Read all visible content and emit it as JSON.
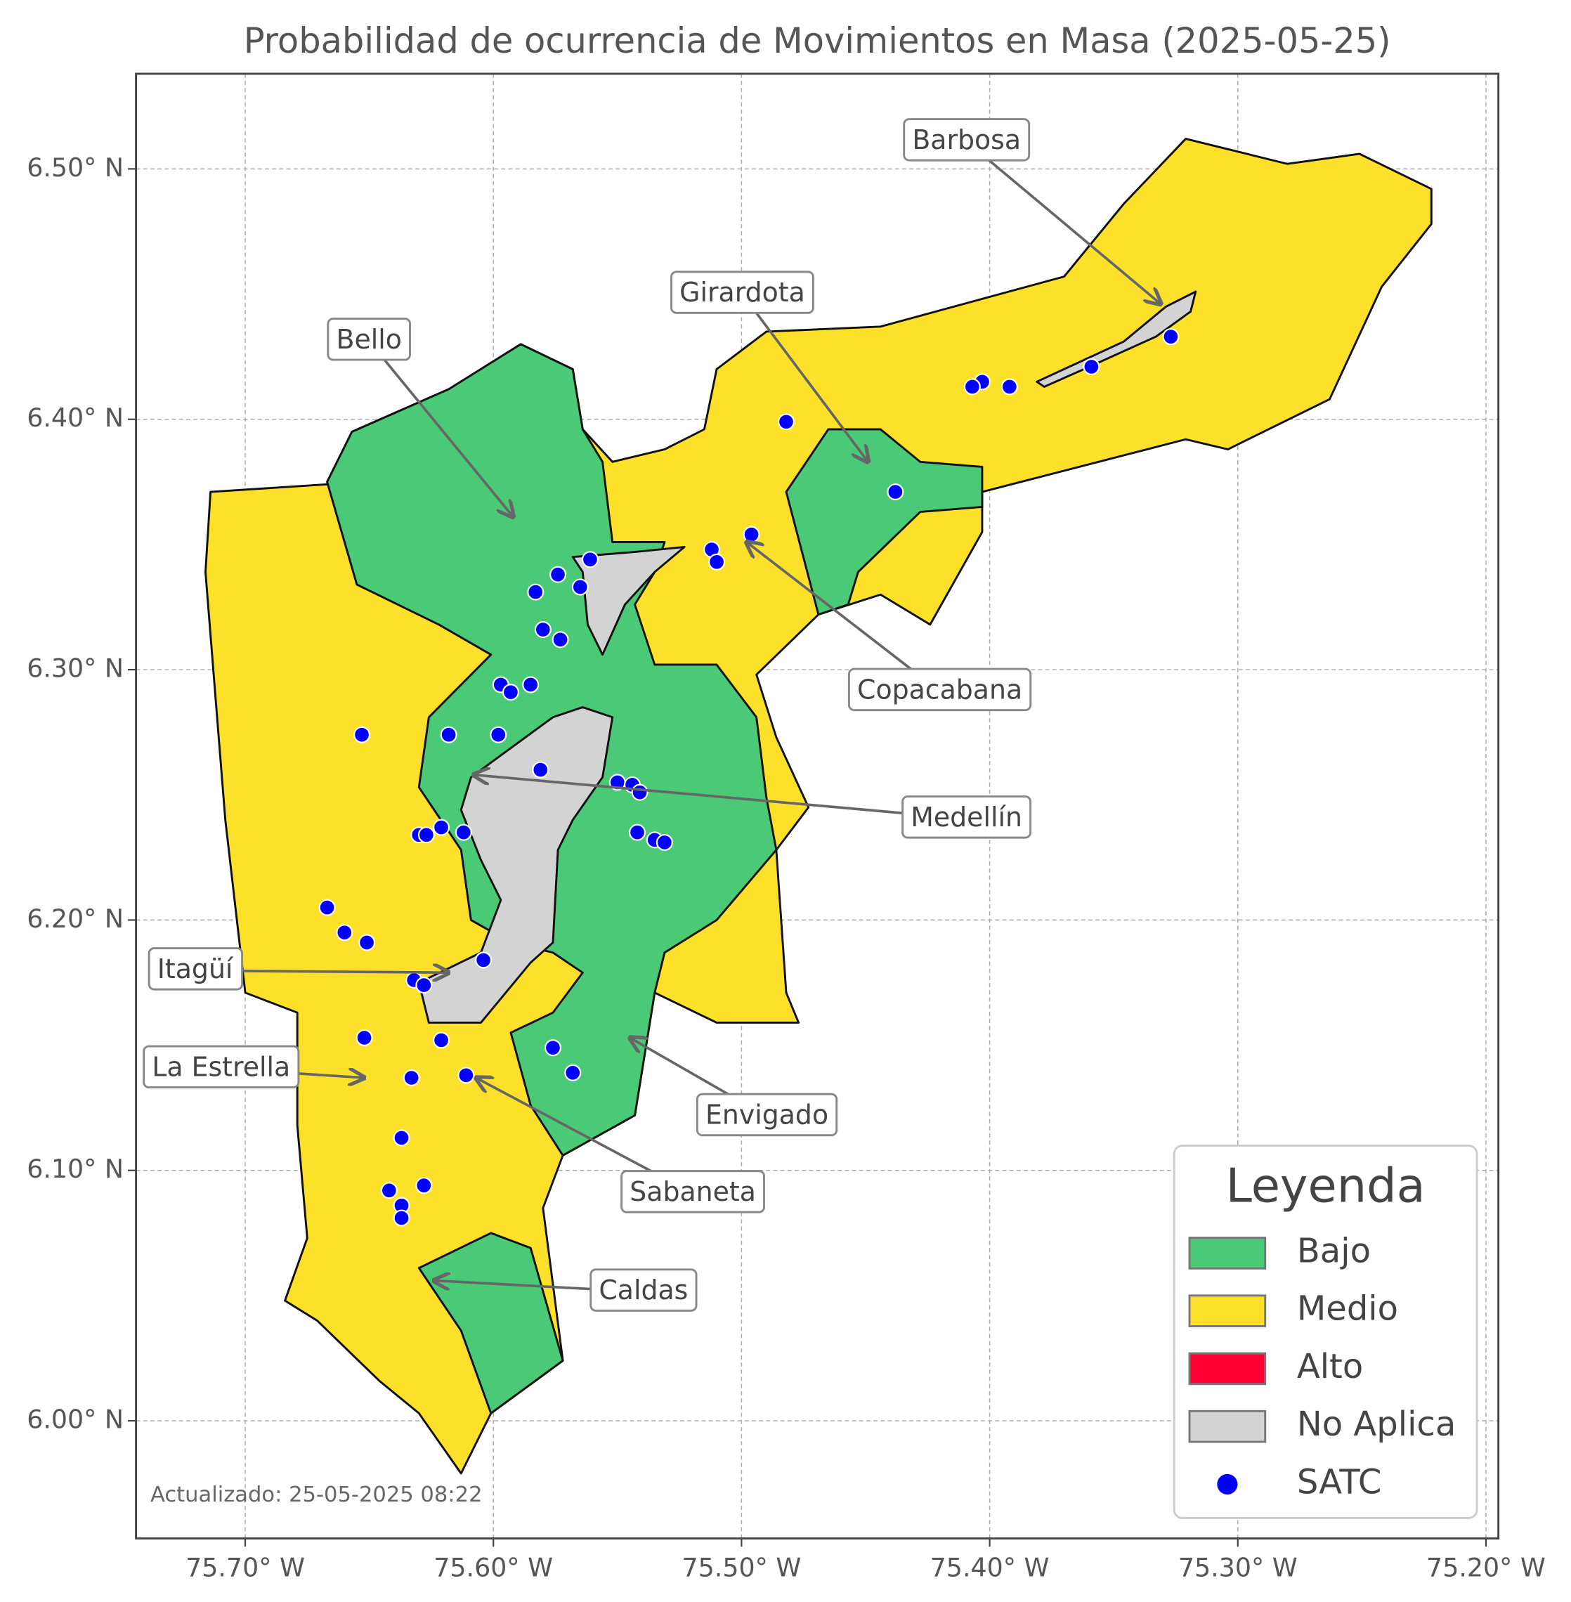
{
  "chart_data": {
    "type": "map",
    "title": "Probabilidad de ocurrencia de Movimientos en Masa (2025-05-25)",
    "xlim": [
      -75.744,
      -75.195
    ],
    "ylim": [
      5.953,
      6.538
    ],
    "xticks": [
      {
        "value": -75.7,
        "label": "75.70° W"
      },
      {
        "value": -75.6,
        "label": "75.60° W"
      },
      {
        "value": -75.5,
        "label": "75.50° W"
      },
      {
        "value": -75.4,
        "label": "75.40° W"
      },
      {
        "value": -75.3,
        "label": "75.30° W"
      },
      {
        "value": -75.2,
        "label": "75.20° W"
      }
    ],
    "yticks": [
      {
        "value": 6.0,
        "label": "6.00° N"
      },
      {
        "value": 6.1,
        "label": "6.10° N"
      },
      {
        "value": 6.2,
        "label": "6.20° N"
      },
      {
        "value": 6.3,
        "label": "6.30° N"
      },
      {
        "value": 6.4,
        "label": "6.40° N"
      },
      {
        "value": 6.5,
        "label": "6.50° N"
      }
    ],
    "grid": true,
    "legend": {
      "title": "Leyenda",
      "items": [
        {
          "label": "Bajo",
          "color": "#4ac977"
        },
        {
          "label": "Medio",
          "color": "#fde02a"
        },
        {
          "label": "Alto",
          "color": "#ff0033"
        },
        {
          "label": "No Aplica",
          "color": "#d3d3d3"
        }
      ]
    },
    "regions": [
      {
        "category": "Medio",
        "coords": [
          [
            -75.714,
            6.371
          ],
          [
            -75.667,
            6.374
          ],
          [
            -75.657,
            6.395
          ],
          [
            -75.618,
            6.412
          ],
          [
            -75.589,
            6.43
          ],
          [
            -75.568,
            6.42
          ],
          [
            -75.564,
            6.396
          ],
          [
            -75.552,
            6.383
          ],
          [
            -75.531,
            6.388
          ],
          [
            -75.515,
            6.396
          ],
          [
            -75.51,
            6.42
          ],
          [
            -75.49,
            6.435
          ],
          [
            -75.444,
            6.437
          ],
          [
            -75.37,
            6.457
          ],
          [
            -75.346,
            6.486
          ],
          [
            -75.321,
            6.512
          ],
          [
            -75.28,
            6.502
          ],
          [
            -75.251,
            6.506
          ],
          [
            -75.222,
            6.492
          ],
          [
            -75.222,
            6.478
          ],
          [
            -75.242,
            6.453
          ],
          [
            -75.263,
            6.408
          ],
          [
            -75.304,
            6.388
          ],
          [
            -75.321,
            6.392
          ],
          [
            -75.403,
            6.371
          ],
          [
            -75.403,
            6.355
          ],
          [
            -75.424,
            6.318
          ],
          [
            -75.444,
            6.33
          ],
          [
            -75.469,
            6.322
          ],
          [
            -75.494,
            6.298
          ],
          [
            -75.486,
            6.273
          ],
          [
            -75.473,
            6.245
          ],
          [
            -75.486,
            6.228
          ],
          [
            -75.482,
            6.171
          ],
          [
            -75.477,
            6.159
          ],
          [
            -75.51,
            6.159
          ],
          [
            -75.535,
            6.171
          ],
          [
            -75.543,
            6.122
          ],
          [
            -75.572,
            6.106
          ],
          [
            -75.58,
            6.085
          ],
          [
            -75.572,
            6.024
          ],
          [
            -75.601,
            6.003
          ],
          [
            -75.613,
            5.979
          ],
          [
            -75.63,
            6.003
          ],
          [
            -75.646,
            6.016
          ],
          [
            -75.671,
            6.04
          ],
          [
            -75.684,
            6.048
          ],
          [
            -75.675,
            6.073
          ],
          [
            -75.679,
            6.118
          ],
          [
            -75.679,
            6.163
          ],
          [
            -75.7,
            6.171
          ],
          [
            -75.708,
            6.24
          ],
          [
            -75.716,
            6.339
          ]
        ]
      },
      {
        "category": "Bajo",
        "coords": [
          [
            -75.667,
            6.375
          ],
          [
            -75.657,
            6.395
          ],
          [
            -75.618,
            6.412
          ],
          [
            -75.589,
            6.43
          ],
          [
            -75.568,
            6.42
          ],
          [
            -75.564,
            6.396
          ],
          [
            -75.556,
            6.383
          ],
          [
            -75.552,
            6.351
          ],
          [
            -75.531,
            6.351
          ],
          [
            -75.535,
            6.339
          ],
          [
            -75.543,
            6.326
          ],
          [
            -75.535,
            6.302
          ],
          [
            -75.51,
            6.302
          ],
          [
            -75.494,
            6.281
          ],
          [
            -75.49,
            6.249
          ],
          [
            -75.486,
            6.228
          ],
          [
            -75.51,
            6.2
          ],
          [
            -75.531,
            6.187
          ],
          [
            -75.535,
            6.171
          ],
          [
            -75.543,
            6.122
          ],
          [
            -75.572,
            6.106
          ],
          [
            -75.585,
            6.126
          ],
          [
            -75.593,
            6.155
          ],
          [
            -75.576,
            6.163
          ],
          [
            -75.564,
            6.179
          ],
          [
            -75.576,
            6.187
          ],
          [
            -75.593,
            6.191
          ],
          [
            -75.609,
            6.2
          ],
          [
            -75.613,
            6.228
          ],
          [
            -75.63,
            6.253
          ],
          [
            -75.626,
            6.281
          ],
          [
            -75.601,
            6.306
          ],
          [
            -75.622,
            6.318
          ],
          [
            -75.655,
            6.334
          ]
        ]
      },
      {
        "category": "Bajo",
        "coords": [
          [
            -75.469,
            6.322
          ],
          [
            -75.482,
            6.371
          ],
          [
            -75.465,
            6.396
          ],
          [
            -75.444,
            6.396
          ],
          [
            -75.428,
            6.383
          ],
          [
            -75.403,
            6.381
          ],
          [
            -75.403,
            6.365
          ],
          [
            -75.428,
            6.363
          ],
          [
            -75.453,
            6.339
          ],
          [
            -75.457,
            6.326
          ]
        ]
      },
      {
        "category": "Bajo",
        "coords": [
          [
            -75.63,
            6.061
          ],
          [
            -75.601,
            6.075
          ],
          [
            -75.585,
            6.069
          ],
          [
            -75.572,
            6.024
          ],
          [
            -75.601,
            6.003
          ],
          [
            -75.613,
            6.036
          ]
        ]
      },
      {
        "category": "No Aplica",
        "coords": [
          [
            -75.609,
            6.257
          ],
          [
            -75.576,
            6.281
          ],
          [
            -75.564,
            6.285
          ],
          [
            -75.552,
            6.281
          ],
          [
            -75.556,
            6.257
          ],
          [
            -75.568,
            6.24
          ],
          [
            -75.574,
            6.228
          ],
          [
            -75.576,
            6.191
          ],
          [
            -75.585,
            6.183
          ],
          [
            -75.605,
            6.159
          ],
          [
            -75.626,
            6.159
          ],
          [
            -75.63,
            6.175
          ],
          [
            -75.605,
            6.187
          ],
          [
            -75.597,
            6.208
          ],
          [
            -75.605,
            6.224
          ],
          [
            -75.613,
            6.244
          ]
        ]
      },
      {
        "category": "No Aplica",
        "coords": [
          [
            -75.568,
            6.345
          ],
          [
            -75.543,
            6.347
          ],
          [
            -75.523,
            6.349
          ],
          [
            -75.535,
            6.339
          ],
          [
            -75.547,
            6.326
          ],
          [
            -75.556,
            6.306
          ],
          [
            -75.562,
            6.318
          ],
          [
            -75.564,
            6.339
          ]
        ]
      },
      {
        "category": "No Aplica",
        "coords": [
          [
            -75.381,
            6.415
          ],
          [
            -75.346,
            6.431
          ],
          [
            -75.329,
            6.445
          ],
          [
            -75.317,
            6.451
          ],
          [
            -75.319,
            6.443
          ],
          [
            -75.333,
            6.433
          ],
          [
            -75.362,
            6.42
          ],
          [
            -75.378,
            6.413
          ]
        ]
      }
    ],
    "satc": {
      "name": "SATC",
      "color": "#0000ff",
      "lon": [
        -75.327,
        -75.359,
        -75.392,
        -75.403,
        -75.407,
        -75.482,
        -75.438,
        -75.496,
        -75.512,
        -75.51,
        -75.561,
        -75.574,
        -75.565,
        -75.583,
        -75.58,
        -75.573,
        -75.597,
        -75.593,
        -75.585,
        -75.653,
        -75.618,
        -75.598,
        -75.581,
        -75.55,
        -75.544,
        -75.541,
        -75.542,
        -75.535,
        -75.531,
        -75.63,
        -75.627,
        -75.621,
        -75.612,
        -75.667,
        -75.66,
        -75.651,
        -75.604,
        -75.632,
        -75.628,
        -75.652,
        -75.621,
        -75.576,
        -75.568,
        -75.633,
        -75.611,
        -75.637,
        -75.642,
        -75.628,
        -75.637,
        -75.637
      ],
      "lat": [
        6.433,
        6.421,
        6.413,
        6.415,
        6.413,
        6.399,
        6.371,
        6.354,
        6.348,
        6.343,
        6.344,
        6.338,
        6.333,
        6.331,
        6.316,
        6.312,
        6.294,
        6.291,
        6.294,
        6.274,
        6.274,
        6.274,
        6.26,
        6.255,
        6.254,
        6.251,
        6.235,
        6.232,
        6.231,
        6.234,
        6.234,
        6.237,
        6.235,
        6.205,
        6.195,
        6.191,
        6.184,
        6.176,
        6.174,
        6.153,
        6.152,
        6.149,
        6.139,
        6.137,
        6.138,
        6.113,
        6.092,
        6.094,
        6.086,
        6.081
      ]
    },
    "annotations": [
      {
        "text": "Barbosa",
        "x": -75.331,
        "y": 6.446
      },
      {
        "text": "Girardota",
        "x": -75.449,
        "y": 6.383
      },
      {
        "text": "Bello",
        "x": -75.592,
        "y": 6.361
      },
      {
        "text": "Copacabana",
        "x": -75.498,
        "y": 6.351
      },
      {
        "text": "Medellín",
        "x": -75.608,
        "y": 6.258
      },
      {
        "text": "Itagüí",
        "x": -75.618,
        "y": 6.179
      },
      {
        "text": "La Estrella",
        "x": -75.652,
        "y": 6.137
      },
      {
        "text": "Envigado",
        "x": -75.545,
        "y": 6.153
      },
      {
        "text": "Sabaneta",
        "x": -75.607,
        "y": 6.137
      },
      {
        "text": "Caldas",
        "x": -75.624,
        "y": 6.056
      }
    ],
    "note": "Actualizado: 25-05-2025 08:22"
  }
}
